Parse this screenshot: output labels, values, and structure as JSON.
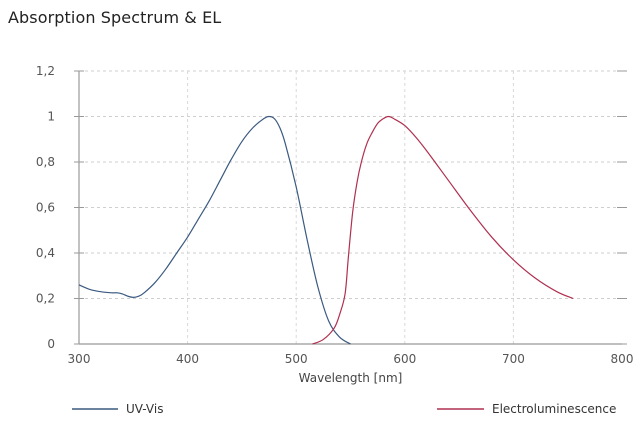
{
  "chart_data": {
    "type": "line",
    "title": "Absorption Spectrum & EL",
    "xlabel": "Wavelength [nm]",
    "ylabel": "",
    "xlim": [
      300,
      800
    ],
    "ylim": [
      0,
      1.2
    ],
    "x_ticks": [
      300,
      400,
      500,
      600,
      700,
      800
    ],
    "x_tick_labels": [
      "300",
      "400",
      "500",
      "600",
      "700",
      "800"
    ],
    "y_ticks": [
      0,
      0.2,
      0.4,
      0.6,
      0.8,
      1,
      1.2
    ],
    "y_tick_labels": [
      "0",
      "0,2",
      "0,4",
      "0,6",
      "0,8",
      "1",
      "1,2"
    ],
    "grid": true,
    "legend_position": "bottom",
    "series": [
      {
        "name": "UV-Vis",
        "color": "#3b5a80",
        "x": [
          300,
          310,
          320,
          330,
          335,
          340,
          345,
          350,
          355,
          360,
          370,
          380,
          390,
          400,
          410,
          420,
          430,
          440,
          450,
          460,
          470,
          475,
          480,
          485,
          490,
          500,
          510,
          520,
          530,
          540,
          550
        ],
        "y": [
          0.26,
          0.24,
          0.23,
          0.225,
          0.225,
          0.22,
          0.21,
          0.205,
          0.21,
          0.225,
          0.27,
          0.33,
          0.4,
          0.47,
          0.55,
          0.63,
          0.72,
          0.81,
          0.89,
          0.95,
          0.99,
          1.0,
          0.99,
          0.95,
          0.88,
          0.69,
          0.46,
          0.25,
          0.1,
          0.03,
          0.0
        ]
      },
      {
        "name": "Electroluminescence",
        "color": "#b03050",
        "x": [
          515,
          525,
          535,
          540,
          545,
          548,
          552,
          556,
          560,
          565,
          570,
          575,
          580,
          585,
          590,
          600,
          610,
          620,
          640,
          660,
          680,
          700,
          720,
          740,
          755
        ],
        "y": [
          0.0,
          0.02,
          0.07,
          0.13,
          0.22,
          0.38,
          0.58,
          0.71,
          0.8,
          0.88,
          0.93,
          0.97,
          0.99,
          1.0,
          0.99,
          0.96,
          0.91,
          0.85,
          0.72,
          0.59,
          0.47,
          0.37,
          0.29,
          0.23,
          0.2
        ]
      }
    ]
  }
}
